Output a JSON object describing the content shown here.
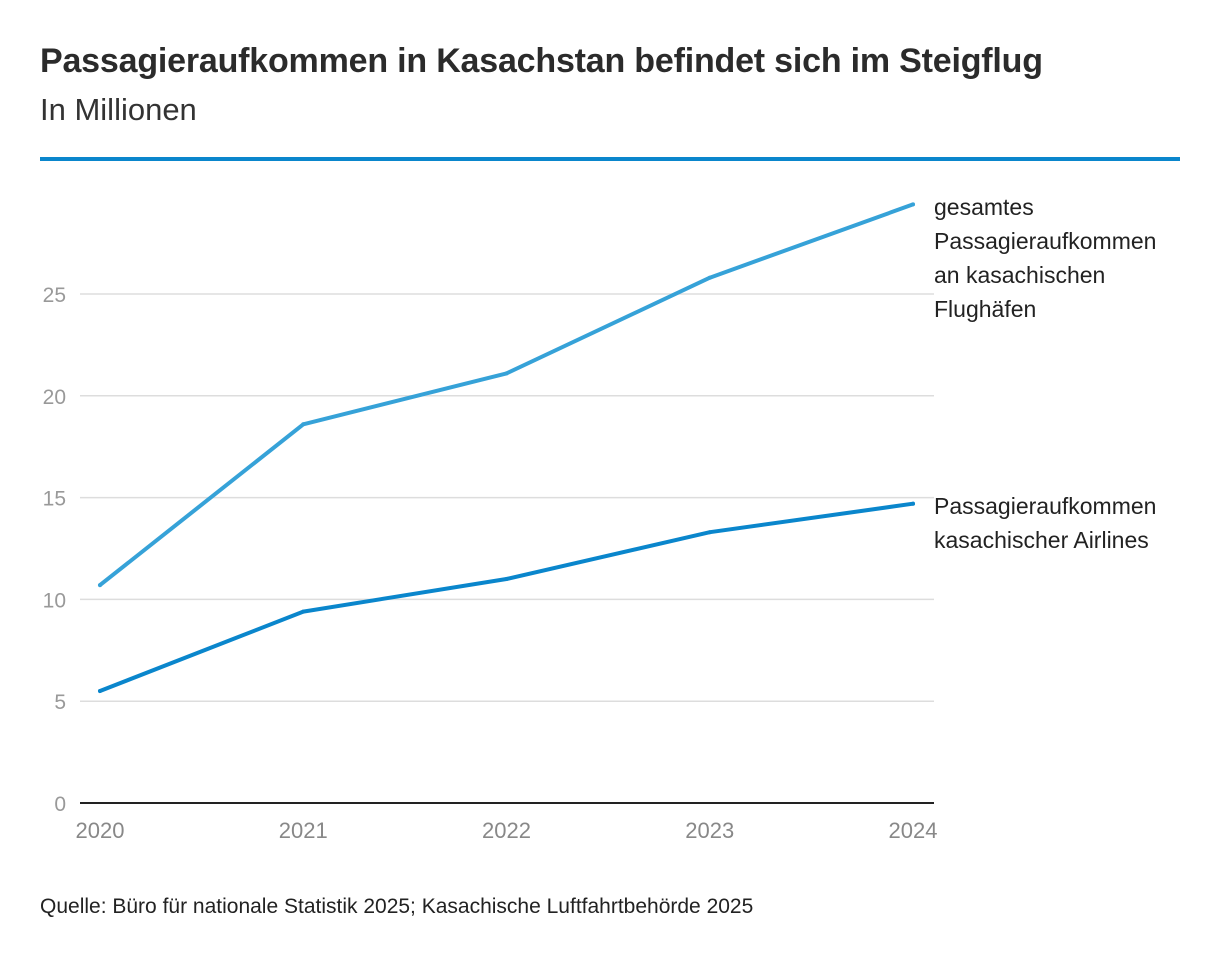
{
  "header": {
    "title": "Passagieraufkommen in Kasachstan befindet sich im Steigflug",
    "subtitle": "In Millionen"
  },
  "colors": {
    "accent_rule": "#0a86cc",
    "series_total": "#36a2d8",
    "series_airlines": "#0a86cc"
  },
  "chart_data": {
    "type": "line",
    "title": "Passagieraufkommen in Kasachstan befindet sich im Steigflug",
    "subtitle": "In Millionen",
    "xlabel": "",
    "ylabel": "",
    "x": [
      "2020",
      "2021",
      "2022",
      "2023",
      "2024"
    ],
    "ylim": [
      0,
      29
    ],
    "yticks": [
      0,
      5,
      10,
      15,
      20,
      25
    ],
    "grid": true,
    "series": [
      {
        "name": "gesamtes Passagieraufkommen an kasachischen Flughäfen",
        "label_lines": [
          "gesamtes",
          "Passagieraufkommen",
          "an kasachischen",
          "Flughäfen"
        ],
        "values": [
          10.7,
          18.6,
          21.1,
          25.8,
          29.4
        ]
      },
      {
        "name": "Passagieraufkommen kasachischer Airlines",
        "label_lines": [
          "Passagieraufkommen",
          "kasachischer Airlines"
        ],
        "values": [
          5.5,
          9.4,
          11.0,
          13.3,
          14.7
        ]
      }
    ]
  },
  "footer": {
    "source": "Quelle: Büro für nationale Statistik 2025; Kasachische Luftfahrtbehörde 2025"
  }
}
